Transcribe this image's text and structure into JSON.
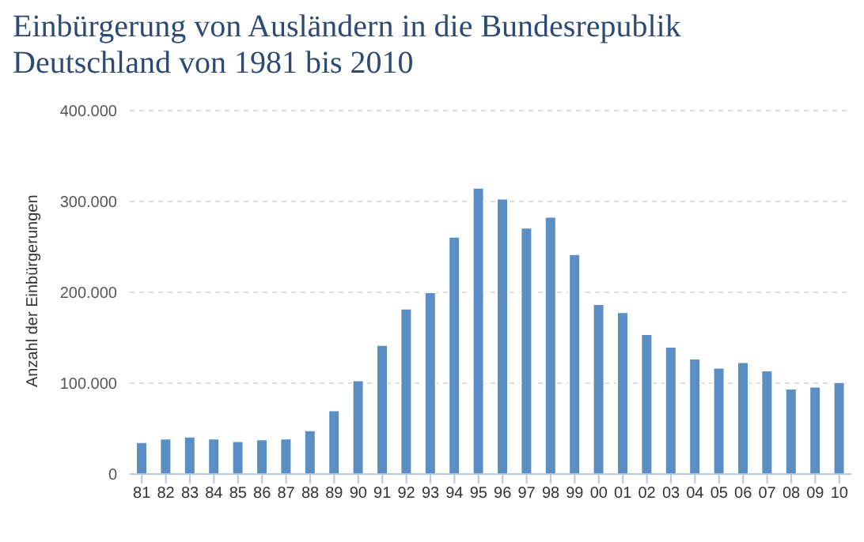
{
  "chart_data": {
    "type": "bar",
    "title": "Einbürgerung von Ausländern in die Bundesrepublik Deutschland von 1981 bis 2010",
    "ylabel": "Anzahl der Einbürgerungen",
    "categories": [
      "81",
      "82",
      "83",
      "84",
      "85",
      "86",
      "87",
      "88",
      "89",
      "90",
      "91",
      "92",
      "93",
      "94",
      "95",
      "96",
      "97",
      "98",
      "99",
      "00",
      "01",
      "02",
      "03",
      "04",
      "05",
      "06",
      "07",
      "08",
      "09",
      "10"
    ],
    "values": [
      35000,
      39000,
      41000,
      39000,
      36000,
      38000,
      39000,
      48000,
      70000,
      103000,
      142000,
      182000,
      200000,
      261000,
      315000,
      303000,
      271000,
      283000,
      242000,
      187000,
      178000,
      154000,
      140000,
      127000,
      117000,
      123000,
      114000,
      94000,
      96000,
      101000
    ],
    "color": "#5b8ec4",
    "ylim": [
      0,
      400000
    ],
    "yticks": [
      0,
      {
        "value": 100000,
        "label": "100.000"
      },
      {
        "value": 200000,
        "label": "200.000"
      },
      {
        "value": 300000,
        "label": "300.000"
      },
      {
        "value": 400000,
        "label": "400.000"
      }
    ],
    "grid": "y"
  }
}
